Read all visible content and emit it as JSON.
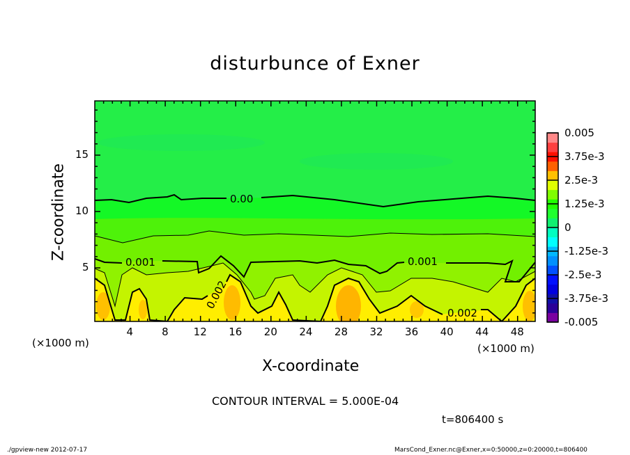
{
  "chart_data": {
    "type": "heatmap",
    "subtype": "filled-contour",
    "title": "disturbunce of Exner",
    "xlabel": "X-coordinate",
    "ylabel": "Z-coordinate",
    "x_unit": "(×1000 m)",
    "xlim": [
      0,
      50
    ],
    "ylim": [
      0,
      20
    ],
    "x_ticks": [
      "4",
      "8",
      "12",
      "16",
      "20",
      "24",
      "28",
      "32",
      "36",
      "40",
      "44",
      "48"
    ],
    "y_ticks": [
      "5",
      "10",
      "15"
    ],
    "colorbar": {
      "range": [
        -0.005,
        0.005
      ],
      "labels": [
        "0.005",
        "3.75e-3",
        "2.5e-3",
        "1.25e-3",
        "0",
        "-1.25e-3",
        "-2.5e-3",
        "-3.75e-3",
        "-0.005"
      ],
      "levels": 20
    },
    "contour_labels": [
      "0.00",
      "0.001",
      "0.001",
      "0.002",
      "0.002"
    ],
    "contour_interval": "CONTOUR INTERVAL = 5.000E-04",
    "time": "t=806400 s"
  },
  "footer": {
    "left": "./gpview-new   2012-07-17",
    "right": "MarsCond_Exner.nc@Exner,x=0:50000,z=0:20000,t=806400"
  }
}
